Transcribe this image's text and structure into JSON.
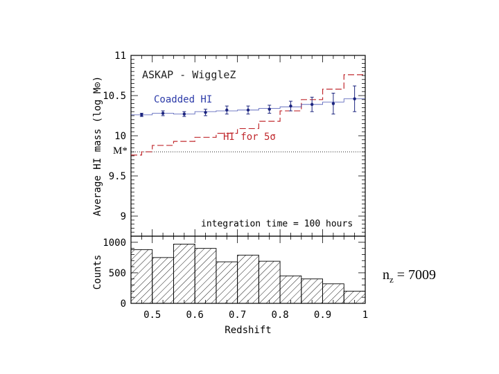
{
  "chart_data": [
    {
      "type": "line",
      "title": "ASKAP - WiggleZ",
      "xlabel": "Redshift",
      "ylabel": "Average HI mass (log M⊙)",
      "xlim": [
        0.45,
        1.0
      ],
      "ylim": [
        8.75,
        11.0
      ],
      "y_ticks": [
        "9",
        "9.5",
        "10",
        "10.5",
        "11"
      ],
      "x_ticks": [
        "0.5",
        "0.6",
        "0.7",
        "0.8",
        "0.9",
        "1"
      ],
      "annotation": "integration time = 100 hours",
      "mstar_label": "M*",
      "mstar_value": 9.8,
      "series": [
        {
          "name": "Coadded HI",
          "color": "#2b3aa8",
          "style": "step",
          "bin_edges": [
            0.45,
            0.5,
            0.55,
            0.6,
            0.65,
            0.7,
            0.75,
            0.8,
            0.85,
            0.9,
            0.95,
            1.0
          ],
          "values": [
            10.26,
            10.28,
            10.27,
            10.3,
            10.31,
            10.32,
            10.34,
            10.36,
            10.39,
            10.42,
            10.46
          ],
          "points": [
            {
              "x": 0.475,
              "y": 10.26,
              "err": 0.02
            },
            {
              "x": 0.525,
              "y": 10.28,
              "err": 0.03
            },
            {
              "x": 0.575,
              "y": 10.27,
              "err": 0.03
            },
            {
              "x": 0.625,
              "y": 10.29,
              "err": 0.04
            },
            {
              "x": 0.675,
              "y": 10.32,
              "err": 0.05
            },
            {
              "x": 0.725,
              "y": 10.32,
              "err": 0.05
            },
            {
              "x": 0.775,
              "y": 10.33,
              "err": 0.05
            },
            {
              "x": 0.825,
              "y": 10.37,
              "err": 0.06
            },
            {
              "x": 0.875,
              "y": 10.39,
              "err": 0.09
            },
            {
              "x": 0.925,
              "y": 10.4,
              "err": 0.13
            },
            {
              "x": 0.975,
              "y": 10.46,
              "err": 0.16
            }
          ]
        },
        {
          "name": "HI for 5σ",
          "color": "#c0282d",
          "style": "dashed-step",
          "bin_edges": [
            0.45,
            0.475,
            0.5,
            0.55,
            0.6,
            0.65,
            0.7,
            0.75,
            0.8,
            0.85,
            0.9,
            0.95,
            1.0
          ],
          "values": [
            9.76,
            9.8,
            9.88,
            9.93,
            9.98,
            10.03,
            10.09,
            10.18,
            10.31,
            10.45,
            10.58,
            10.76
          ]
        }
      ]
    },
    {
      "type": "bar",
      "style": "hatched-histogram",
      "xlabel": "Redshift",
      "ylabel": "Counts",
      "xlim": [
        0.45,
        1.0
      ],
      "ylim": [
        0,
        1100
      ],
      "y_ticks": [
        "0",
        "500",
        "1000"
      ],
      "x_ticks": [
        "0.5",
        "0.6",
        "0.7",
        "0.8",
        "0.9",
        "1"
      ],
      "bin_edges": [
        0.45,
        0.5,
        0.55,
        0.6,
        0.65,
        0.7,
        0.75,
        0.8,
        0.85,
        0.9,
        0.95,
        1.0
      ],
      "values": [
        880,
        750,
        970,
        900,
        680,
        790,
        690,
        450,
        400,
        320,
        200
      ]
    }
  ],
  "footnote": {
    "prefix": "n",
    "sub": "z",
    "suffix": " = 7009"
  }
}
